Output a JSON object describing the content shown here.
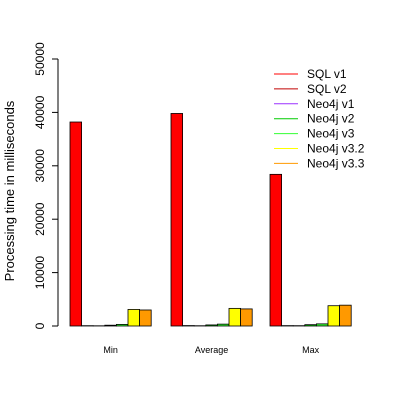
{
  "chart_data": {
    "type": "bar",
    "title": "",
    "xlabel": "",
    "ylabel": "Processing time in milliseconds",
    "ylim": [
      0,
      50000
    ],
    "yticks": [
      0,
      10000,
      20000,
      30000,
      40000,
      50000
    ],
    "categories": [
      "Min",
      "Average",
      "Max"
    ],
    "grid": false,
    "legend_position": "top-right",
    "series": [
      {
        "name": "SQL v1",
        "color": "#ff0000",
        "values": [
          38200,
          39800,
          28400
        ]
      },
      {
        "name": "SQL v2",
        "color": "#c00000",
        "values": [
          60,
          80,
          70
        ]
      },
      {
        "name": "Neo4j v1",
        "color": "#9b30ff",
        "values": [
          40,
          50,
          60
        ]
      },
      {
        "name": "Neo4j v2",
        "color": "#00cc00",
        "values": [
          150,
          200,
          250
        ]
      },
      {
        "name": "Neo4j v3",
        "color": "#33ff33",
        "values": [
          300,
          350,
          400
        ]
      },
      {
        "name": "Neo4j v3.2",
        "color": "#ffff00",
        "values": [
          3100,
          3300,
          3800
        ]
      },
      {
        "name": "Neo4j v3.3",
        "color": "#ff9900",
        "values": [
          3000,
          3200,
          3900
        ]
      }
    ]
  }
}
